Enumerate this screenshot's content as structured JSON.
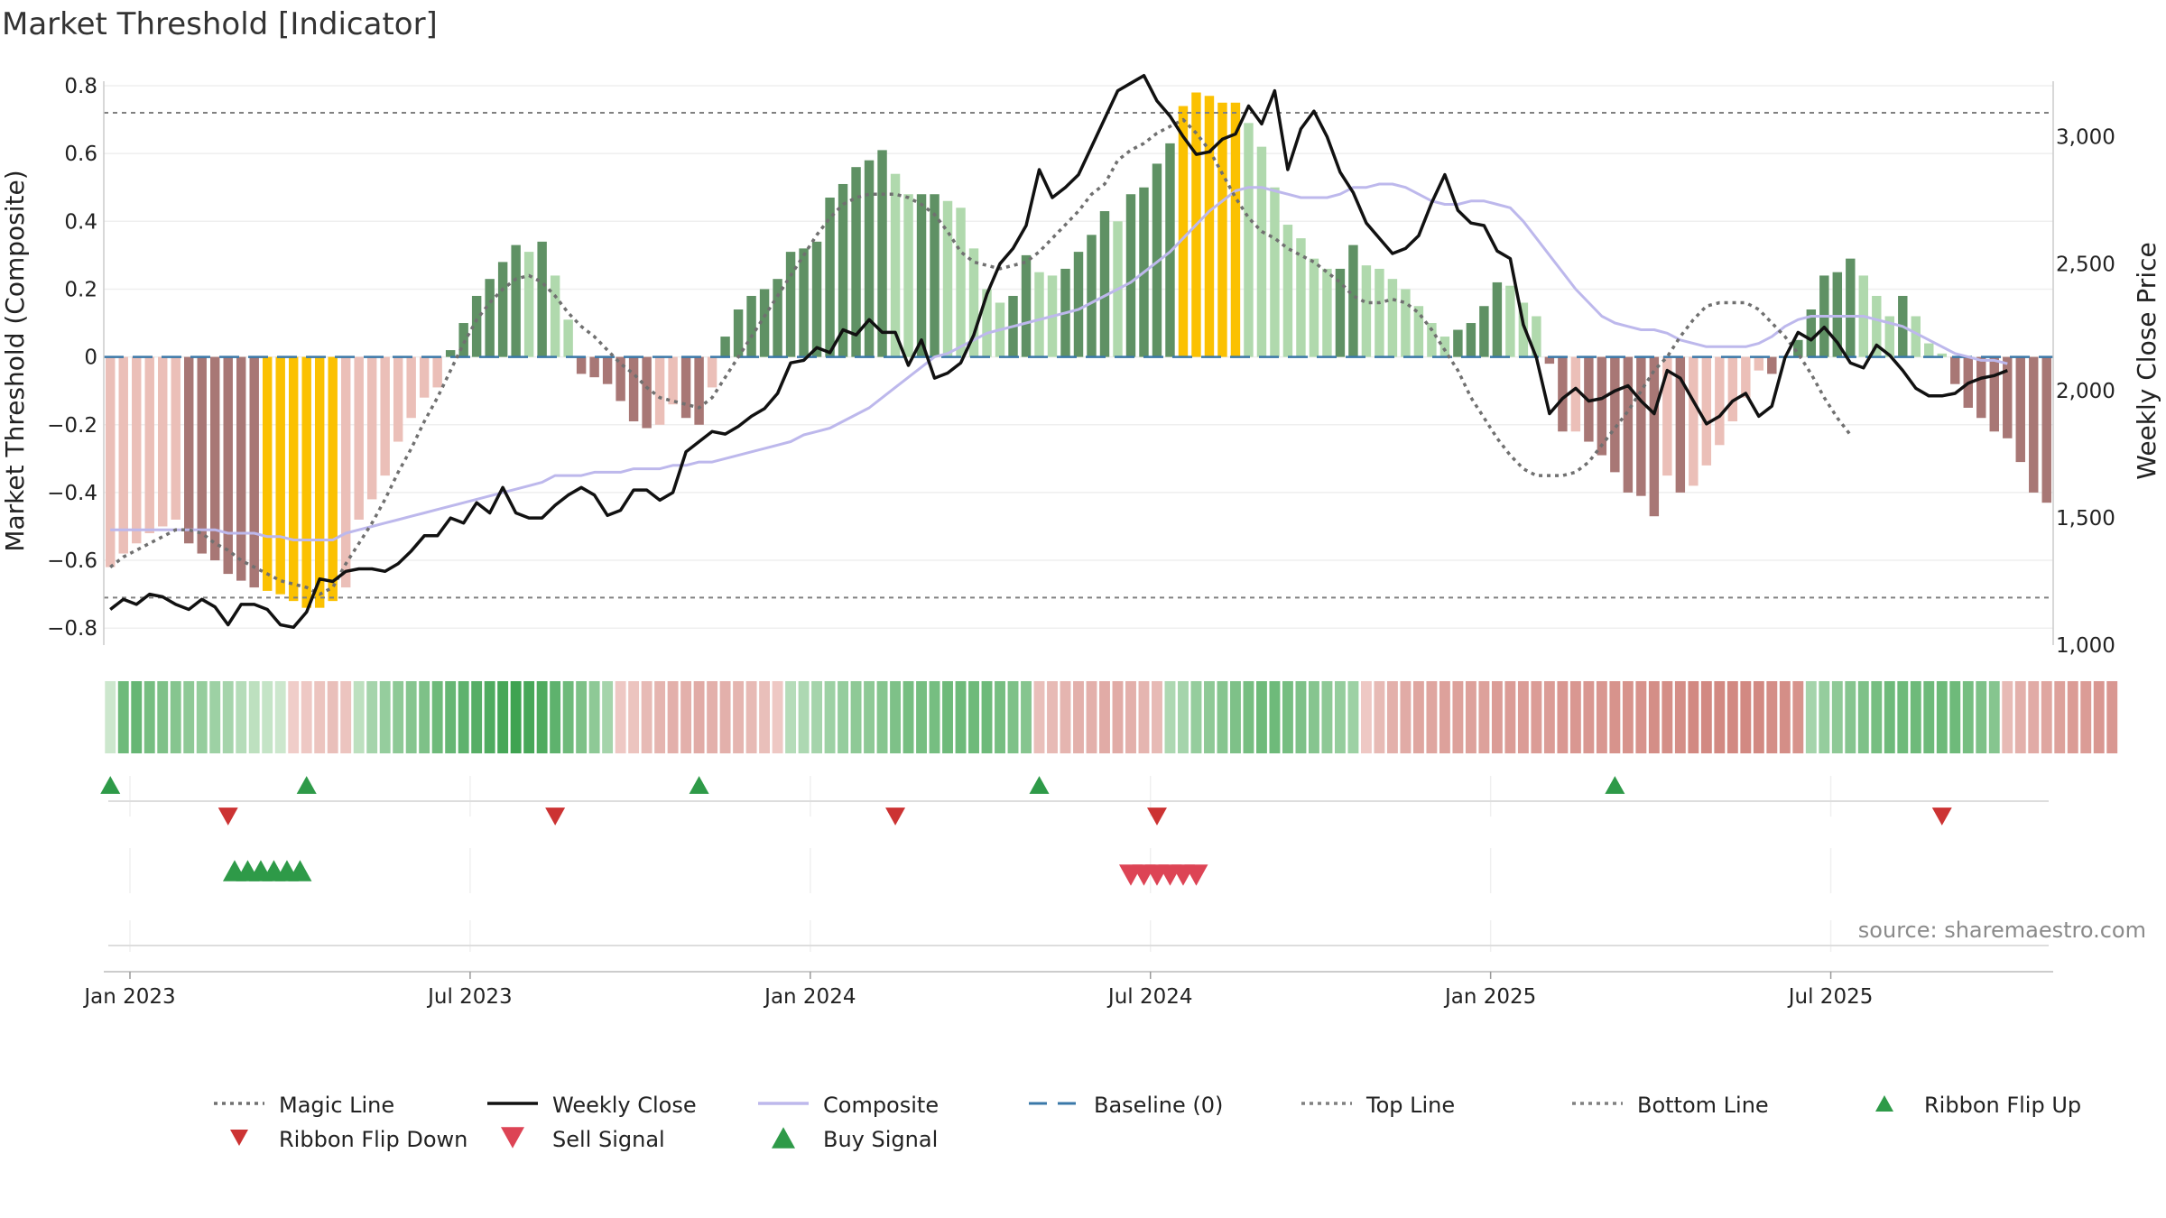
{
  "chart_data": {
    "type": "bar",
    "title": "Market Threshold [Indicator]",
    "ylabel_left": "Market Threshold (Composite)",
    "ylabel_right": "Weekly Close Price",
    "ylim_left": [
      -0.85,
      0.8
    ],
    "ylim_right": [
      1000,
      3200
    ],
    "yticks_left": [
      {
        "value": 0.8,
        "label": "0.8"
      },
      {
        "value": 0.6,
        "label": "0.6"
      },
      {
        "value": 0.4,
        "label": "0.4"
      },
      {
        "value": 0.2,
        "label": "0.2"
      },
      {
        "value": 0,
        "label": "0"
      },
      {
        "value": -0.2,
        "label": "−0.2"
      },
      {
        "value": -0.4,
        "label": "−0.4"
      },
      {
        "value": -0.6,
        "label": "−0.6"
      },
      {
        "value": -0.8,
        "label": "−0.8"
      }
    ],
    "yticks_right": [
      {
        "value": 3000,
        "label": "3,000"
      },
      {
        "value": 2500,
        "label": "2,500"
      },
      {
        "value": 2000,
        "label": "2,000"
      },
      {
        "value": 1500,
        "label": "1,500"
      },
      {
        "value": 1000,
        "label": "1,000"
      }
    ],
    "xticks": [
      {
        "week": 1.5,
        "label": "Jan 2023"
      },
      {
        "week": 27.5,
        "label": "Jul 2023"
      },
      {
        "week": 53.5,
        "label": "Jan 2024"
      },
      {
        "week": 79.5,
        "label": "Jul 2024"
      },
      {
        "week": 105.5,
        "label": "Jan 2025"
      },
      {
        "week": 131.5,
        "label": "Jul 2025"
      }
    ],
    "grid": true,
    "legend_position": "bottom",
    "top_line": 0.72,
    "bottom_line": -0.71,
    "baseline": 0,
    "colors": {
      "strong_up": "#5f9164",
      "weak_up": "#b0d9ad",
      "strong_down": "#a87775",
      "weak_down": "#ebbfb8",
      "extreme": "#fbc101",
      "magic_line": "#707070",
      "weekly_close": "#111111",
      "composite": "#bdb8ec",
      "baseline": "#3a78a8",
      "threshold_lines": "#808080",
      "flip_up": "#2e9a48",
      "flip_down": "#cc3333",
      "buy": "#2e9a48",
      "sell": "#dd4455",
      "axis": "#cccccc",
      "grid": "#efefef"
    },
    "series": [
      {
        "name": "Composite (bars)",
        "values": [
          -0.62,
          -0.58,
          -0.55,
          -0.52,
          -0.5,
          -0.48,
          -0.55,
          -0.58,
          -0.6,
          -0.64,
          -0.66,
          -0.68,
          -0.69,
          -0.7,
          -0.72,
          -0.74,
          -0.74,
          -0.72,
          -0.68,
          -0.48,
          -0.42,
          -0.35,
          -0.25,
          -0.18,
          -0.12,
          -0.09,
          0.02,
          0.1,
          0.18,
          0.23,
          0.28,
          0.33,
          0.31,
          0.34,
          0.24,
          0.11,
          -0.05,
          -0.06,
          -0.08,
          -0.13,
          -0.19,
          -0.21,
          -0.2,
          -0.14,
          -0.18,
          -0.2,
          -0.09,
          0.06,
          0.14,
          0.18,
          0.2,
          0.23,
          0.31,
          0.32,
          0.34,
          0.47,
          0.51,
          0.56,
          0.58,
          0.61,
          0.54,
          0.48,
          0.48,
          0.48,
          0.46,
          0.44,
          0.32,
          0.2,
          0.16,
          0.18,
          0.3,
          0.25,
          0.24,
          0.26,
          0.31,
          0.36,
          0.43,
          0.4,
          0.48,
          0.5,
          0.57,
          0.63,
          0.74,
          0.78,
          0.77,
          0.75,
          0.75,
          0.69,
          0.62,
          0.5,
          0.39,
          0.35,
          0.29,
          0.26,
          0.26,
          0.33,
          0.27,
          0.26,
          0.23,
          0.2,
          0.15,
          0.1,
          0.06,
          0.08,
          0.1,
          0.15,
          0.22,
          0.21,
          0.16,
          0.12,
          -0.02,
          -0.22,
          -0.22,
          -0.25,
          -0.29,
          -0.34,
          -0.4,
          -0.41,
          -0.47,
          -0.35,
          -0.4,
          -0.38,
          -0.32,
          -0.26,
          -0.19,
          -0.12,
          -0.04,
          -0.05,
          0.0,
          0.05,
          0.14,
          0.24,
          0.25,
          0.29,
          0.24,
          0.18,
          0.12,
          0.18,
          0.12,
          0.04,
          0.01,
          -0.08,
          -0.15,
          -0.18,
          -0.22,
          -0.24,
          -0.31,
          -0.4,
          -0.43
        ]
      },
      {
        "name": "Magic Line",
        "values": [
          -0.62,
          -0.59,
          -0.57,
          -0.55,
          -0.53,
          -0.51,
          -0.51,
          -0.52,
          -0.55,
          -0.57,
          -0.6,
          -0.62,
          -0.64,
          -0.66,
          -0.67,
          -0.68,
          -0.7,
          -0.68,
          -0.61,
          -0.55,
          -0.49,
          -0.42,
          -0.34,
          -0.27,
          -0.19,
          -0.12,
          -0.04,
          0.04,
          0.11,
          0.16,
          0.2,
          0.23,
          0.24,
          0.22,
          0.18,
          0.13,
          0.09,
          0.06,
          0.02,
          -0.02,
          -0.05,
          -0.09,
          -0.12,
          -0.13,
          -0.14,
          -0.15,
          -0.12,
          -0.06,
          0.0,
          0.06,
          0.12,
          0.18,
          0.24,
          0.3,
          0.36,
          0.41,
          0.45,
          0.47,
          0.48,
          0.48,
          0.48,
          0.47,
          0.45,
          0.42,
          0.37,
          0.31,
          0.28,
          0.27,
          0.26,
          0.27,
          0.28,
          0.31,
          0.35,
          0.39,
          0.43,
          0.48,
          0.51,
          0.58,
          0.61,
          0.63,
          0.66,
          0.68,
          0.7,
          0.66,
          0.61,
          0.54,
          0.47,
          0.41,
          0.37,
          0.35,
          0.32,
          0.3,
          0.28,
          0.25,
          0.22,
          0.18,
          0.16,
          0.16,
          0.17,
          0.16,
          0.13,
          0.08,
          0.02,
          -0.04,
          -0.12,
          -0.18,
          -0.24,
          -0.29,
          -0.33,
          -0.35,
          -0.35,
          -0.35,
          -0.34,
          -0.31,
          -0.26,
          -0.21,
          -0.16,
          -0.1,
          -0.04,
          0.0,
          0.06,
          0.11,
          0.15,
          0.16,
          0.16,
          0.16,
          0.14,
          0.1,
          0.06,
          0.01,
          -0.05,
          -0.12,
          -0.18,
          -0.23
        ]
      },
      {
        "name": "Weekly Close",
        "values": [
          1140,
          1180,
          1160,
          1200,
          1190,
          1160,
          1140,
          1180,
          1150,
          1080,
          1160,
          1160,
          1140,
          1080,
          1070,
          1130,
          1260,
          1250,
          1290,
          1300,
          1300,
          1290,
          1320,
          1370,
          1430,
          1430,
          1500,
          1480,
          1560,
          1520,
          1620,
          1520,
          1500,
          1500,
          1550,
          1590,
          1620,
          1590,
          1510,
          1530,
          1610,
          1610,
          1570,
          1600,
          1760,
          1800,
          1840,
          1830,
          1860,
          1900,
          1930,
          1990,
          2110,
          2120,
          2170,
          2150,
          2240,
          2220,
          2280,
          2230,
          2230,
          2100,
          2200,
          2050,
          2070,
          2110,
          2220,
          2380,
          2500,
          2560,
          2650,
          2870,
          2760,
          2800,
          2850,
          2960,
          3070,
          3180,
          3210,
          3240,
          3140,
          3080,
          3000,
          2930,
          2940,
          2990,
          3010,
          3120,
          3050,
          3180,
          2870,
          3030,
          3100,
          3000,
          2860,
          2780,
          2660,
          2600,
          2540,
          2560,
          2610,
          2740,
          2850,
          2710,
          2660,
          2650,
          2550,
          2520,
          2260,
          2130,
          1910,
          1970,
          2010,
          1960,
          1970,
          2000,
          2020,
          1960,
          1910,
          2080,
          2050,
          1960,
          1870,
          1900,
          1960,
          1990,
          1900,
          1940,
          2130,
          2230,
          2200,
          2250,
          2190,
          2110,
          2090,
          2180,
          2140,
          2080,
          2010,
          1980,
          1980,
          1990,
          2030,
          2050,
          2060,
          2080
        ]
      },
      {
        "name": "Composite",
        "values": [
          -0.51,
          -0.51,
          -0.51,
          -0.51,
          -0.51,
          -0.51,
          -0.51,
          -0.51,
          -0.51,
          -0.52,
          -0.52,
          -0.52,
          -0.53,
          -0.53,
          -0.54,
          -0.54,
          -0.54,
          -0.54,
          -0.52,
          -0.51,
          -0.5,
          -0.49,
          -0.48,
          -0.47,
          -0.46,
          -0.45,
          -0.44,
          -0.43,
          -0.42,
          -0.41,
          -0.4,
          -0.39,
          -0.38,
          -0.37,
          -0.35,
          -0.35,
          -0.35,
          -0.34,
          -0.34,
          -0.34,
          -0.33,
          -0.33,
          -0.33,
          -0.32,
          -0.32,
          -0.31,
          -0.31,
          -0.3,
          -0.29,
          -0.28,
          -0.27,
          -0.26,
          -0.25,
          -0.23,
          -0.22,
          -0.21,
          -0.19,
          -0.17,
          -0.15,
          -0.12,
          -0.09,
          -0.06,
          -0.03,
          0.0,
          0.01,
          0.03,
          0.05,
          0.07,
          0.08,
          0.09,
          0.1,
          0.11,
          0.12,
          0.13,
          0.14,
          0.16,
          0.18,
          0.2,
          0.22,
          0.25,
          0.28,
          0.31,
          0.35,
          0.39,
          0.43,
          0.46,
          0.49,
          0.5,
          0.5,
          0.49,
          0.48,
          0.47,
          0.47,
          0.47,
          0.48,
          0.5,
          0.5,
          0.51,
          0.51,
          0.5,
          0.48,
          0.46,
          0.45,
          0.45,
          0.46,
          0.46,
          0.45,
          0.44,
          0.4,
          0.35,
          0.3,
          0.25,
          0.2,
          0.16,
          0.12,
          0.1,
          0.09,
          0.08,
          0.08,
          0.07,
          0.05,
          0.04,
          0.03,
          0.03,
          0.03,
          0.03,
          0.04,
          0.06,
          0.09,
          0.11,
          0.12,
          0.12,
          0.12,
          0.12,
          0.12,
          0.11,
          0.1,
          0.09,
          0.07,
          0.05,
          0.03,
          0.01,
          0.0,
          -0.01,
          -0.01,
          -0.02
        ]
      }
    ],
    "ribbon": [
      0.1,
      0.7,
      0.75,
      0.65,
      0.6,
      0.55,
      0.5,
      0.45,
      0.4,
      0.35,
      0.25,
      0.2,
      0.15,
      0.1,
      -0.15,
      -0.2,
      -0.25,
      -0.3,
      -0.25,
      0.2,
      0.35,
      0.45,
      0.5,
      0.55,
      0.6,
      0.7,
      0.75,
      0.8,
      0.85,
      0.9,
      0.95,
      1.0,
      0.95,
      0.9,
      0.8,
      0.7,
      0.6,
      0.5,
      0.35,
      -0.2,
      -0.25,
      -0.35,
      -0.4,
      -0.45,
      -0.45,
      -0.5,
      -0.45,
      -0.45,
      -0.4,
      -0.35,
      -0.3,
      -0.2,
      0.25,
      0.3,
      0.35,
      0.4,
      0.45,
      0.5,
      0.5,
      0.55,
      0.6,
      0.65,
      0.65,
      0.65,
      0.7,
      0.7,
      0.7,
      0.7,
      0.65,
      0.6,
      0.55,
      -0.3,
      -0.35,
      -0.4,
      -0.45,
      -0.45,
      -0.5,
      -0.5,
      -0.45,
      -0.4,
      -0.35,
      0.3,
      0.35,
      0.45,
      0.5,
      0.55,
      0.6,
      0.65,
      0.7,
      0.7,
      0.65,
      0.6,
      0.55,
      0.5,
      0.45,
      0.4,
      -0.2,
      -0.35,
      -0.45,
      -0.5,
      -0.55,
      -0.55,
      -0.6,
      -0.6,
      -0.6,
      -0.6,
      -0.65,
      -0.65,
      -0.65,
      -0.65,
      -0.65,
      -0.7,
      -0.7,
      -0.7,
      -0.7,
      -0.75,
      -0.75,
      -0.75,
      -0.8,
      -0.8,
      -0.8,
      -0.85,
      -0.85,
      -0.85,
      -0.85,
      -0.85,
      -0.85,
      -0.8,
      -0.8,
      -0.75,
      0.35,
      0.45,
      0.5,
      0.55,
      0.6,
      0.65,
      0.7,
      0.7,
      0.7,
      0.7,
      0.7,
      0.7,
      0.65,
      0.6,
      0.55,
      -0.35,
      -0.45,
      -0.5,
      -0.55,
      -0.6,
      -0.65,
      -0.65,
      -0.7,
      -0.7
    ],
    "ribbon_flip_up_weeks": [
      0,
      15,
      45,
      71,
      115
    ],
    "ribbon_flip_down_weeks": [
      9,
      34,
      60,
      80,
      140
    ],
    "buy_signal_weeks": [
      9.5,
      10.5,
      11.5,
      12.5,
      13.5,
      14.5
    ],
    "sell_signal_weeks": [
      78,
      79,
      80,
      81,
      82,
      83
    ]
  },
  "legend": {
    "items": [
      {
        "label": "Magic Line",
        "symbol": "dotted-line",
        "color": "#707070"
      },
      {
        "label": "Weekly Close",
        "symbol": "solid-line",
        "color": "#111111"
      },
      {
        "label": "Composite",
        "symbol": "solid-line",
        "color": "#bdb8ec"
      },
      {
        "label": "Baseline (0)",
        "symbol": "dashed-line",
        "color": "#3a78a8"
      },
      {
        "label": "Top Line",
        "symbol": "dotted-line",
        "color": "#808080"
      },
      {
        "label": "Bottom Line",
        "symbol": "dotted-line",
        "color": "#808080"
      },
      {
        "label": "Ribbon Flip Up",
        "symbol": "triangle-up",
        "color": "#2e9a48"
      },
      {
        "label": "Ribbon Flip Down",
        "symbol": "triangle-down",
        "color": "#cc3333"
      },
      {
        "label": "Sell Signal",
        "symbol": "triangle-down",
        "color": "#dd4455"
      },
      {
        "label": "Buy Signal",
        "symbol": "triangle-up",
        "color": "#2e9a48"
      }
    ]
  },
  "footer": {
    "source": "source: sharemaestro.com"
  }
}
